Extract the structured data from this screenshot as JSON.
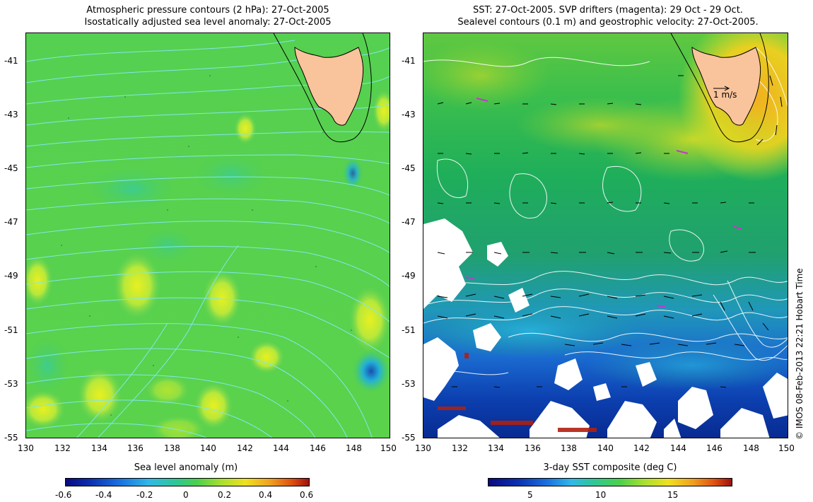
{
  "left_panel": {
    "title_line1": "Atmospheric pressure contours (2 hPa): 27-Oct-2005",
    "title_line2": "Isostatically adjusted sea level anomaly: 27-Oct-2005",
    "y_ticks": [
      "-41",
      "-43",
      "-45",
      "-47",
      "-49",
      "-51",
      "-53",
      "-55"
    ],
    "x_ticks": [
      "130",
      "132",
      "134",
      "136",
      "138",
      "140",
      "142",
      "144",
      "146",
      "148",
      "150"
    ],
    "colorbar": {
      "label": "Sea level anomaly (m)",
      "ticks": [
        "-0.6",
        "-0.4",
        "-0.2",
        "0",
        "0.2",
        "0.4",
        "0.6"
      ]
    }
  },
  "right_panel": {
    "title_line1": "SST: 27-Oct-2005. SVP drifters (magenta): 29 Oct - 29 Oct.",
    "title_line2": "Sealevel contours (0.1 m) and geostrophic velocity: 27-Oct-2005.",
    "y_ticks": [
      "-41",
      "-43",
      "-45",
      "-47",
      "-49",
      "-51",
      "-53",
      "-55"
    ],
    "x_ticks": [
      "130",
      "132",
      "134",
      "136",
      "138",
      "140",
      "142",
      "144",
      "146",
      "148",
      "150"
    ],
    "velocity_scale_label": "1 m/s",
    "colorbar": {
      "label": "3-day SST composite (deg C)",
      "ticks": [
        "5",
        "10",
        "15"
      ]
    }
  },
  "credit": "© IMOS 08-Feb-2013 22:21 Hobart Time",
  "colors": {
    "land": "#f9c39b",
    "coastline": "#000000",
    "pressure_contours": "#7fe8e8",
    "sealevel_contours": "#ffffff",
    "drifters": "#cc33cc"
  }
}
